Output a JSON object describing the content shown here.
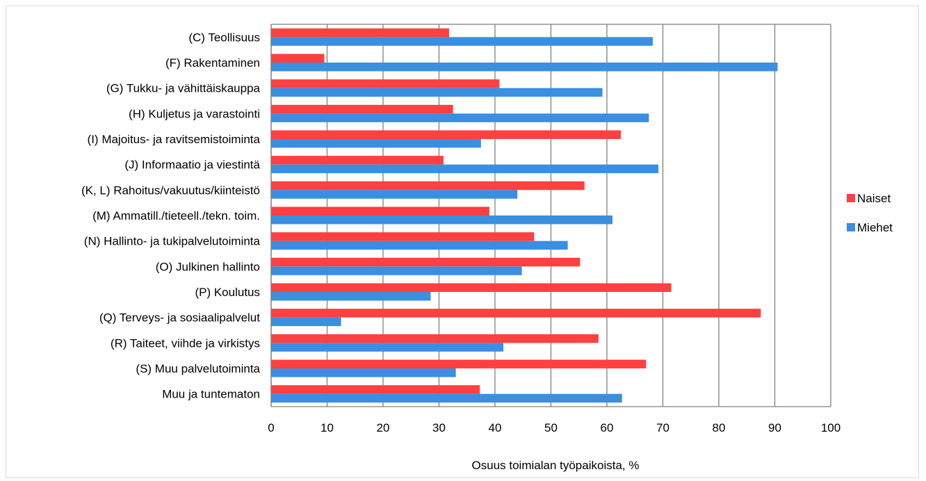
{
  "chart_data": {
    "type": "bar",
    "orientation": "horizontal",
    "title": "",
    "xlabel": "Osuus toimialan työpaikoista, %",
    "ylabel": "",
    "xlim": [
      0,
      100
    ],
    "xticks": [
      0,
      10,
      20,
      30,
      40,
      50,
      60,
      70,
      80,
      90,
      100
    ],
    "grid": true,
    "legend_position": "right",
    "categories": [
      "(C) Teollisuus",
      "(F) Rakentaminen",
      "(G) Tukku- ja vähittäiskauppa",
      "(H) Kuljetus ja varastointi",
      "(I) Majoitus- ja ravitsemistoiminta",
      "(J) Informaatio ja viestintä",
      "(K, L) Rahoitus/vakuutus/kiinteistö",
      "(M) Ammatill./tieteell./tekn. toim.",
      "(N) Hallinto- ja tukipalvelutoiminta",
      "(O) Julkinen hallinto",
      "(P) Koulutus",
      "(Q) Terveys- ja sosiaalipalvelut",
      "(R) Taiteet, viihde ja virkistys",
      "(S) Muu palvelutoiminta",
      "Muu ja tuntematon"
    ],
    "series": [
      {
        "name": "Naiset",
        "color": "#ff4040",
        "values": [
          31.8,
          9.5,
          40.8,
          32.5,
          62.5,
          30.8,
          56.0,
          39.0,
          47.0,
          55.2,
          71.5,
          87.5,
          58.5,
          67.0,
          37.3
        ]
      },
      {
        "name": "Miehet",
        "color": "#3a8fe0",
        "values": [
          68.2,
          90.5,
          59.2,
          67.5,
          37.5,
          69.2,
          44.0,
          61.0,
          53.0,
          44.8,
          28.5,
          12.5,
          41.5,
          33.0,
          62.7
        ]
      }
    ],
    "colors": {
      "grid": "#7f7f7f",
      "axis": "#7f7f7f",
      "frame": "#d9d9d9"
    }
  }
}
